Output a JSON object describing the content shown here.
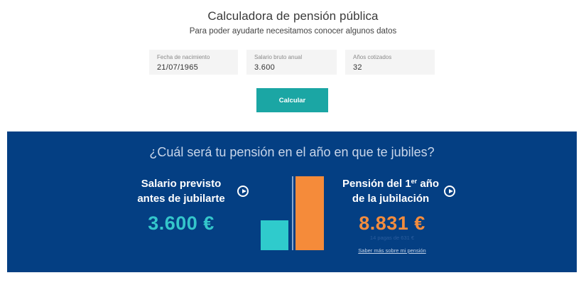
{
  "header": {
    "title": "Calculadora de pensión pública",
    "subtitle": "Para poder ayudarte necesitamos conocer algunos datos"
  },
  "form": {
    "fields": [
      {
        "label": "Fecha de nacimiento",
        "value": "21/07/1965"
      },
      {
        "label": "Salario bruto anual",
        "value": "3.600"
      },
      {
        "label": "Años cotizados",
        "value": "32"
      }
    ],
    "submit_label": "Calcular"
  },
  "result": {
    "question": "¿Cuál será tu pensión en el año en que te jubiles?",
    "salary": {
      "label_line1": "Salario previsto",
      "label_line2": "antes de jubilarte",
      "amount": "3.600 €",
      "info_icon": "play-circle-icon"
    },
    "pension": {
      "label_line1_pre": "Pensión del 1",
      "label_sup": "er",
      "label_line1_post": " año",
      "label_line2": "de la jubilación",
      "amount": "8.831 €",
      "note": "14 pagas de 631 €",
      "link": "Saber más sobre mi pensión",
      "info_icon": "play-circle-icon"
    }
  },
  "colors": {
    "panel_bg": "#043f83",
    "accent_teal": "#1ba6a4",
    "salary_color": "#34c6cb",
    "pension_color": "#f28c3e"
  },
  "chart_data": {
    "type": "bar",
    "categories": [
      "Salario previsto antes de jubilarte",
      "Pensión del 1er año de la jubilación"
    ],
    "values": [
      3600,
      8831
    ],
    "colors": [
      "#2fcbcc",
      "#f58b3a"
    ],
    "title": "",
    "xlabel": "",
    "ylabel": "",
    "grid": false
  }
}
